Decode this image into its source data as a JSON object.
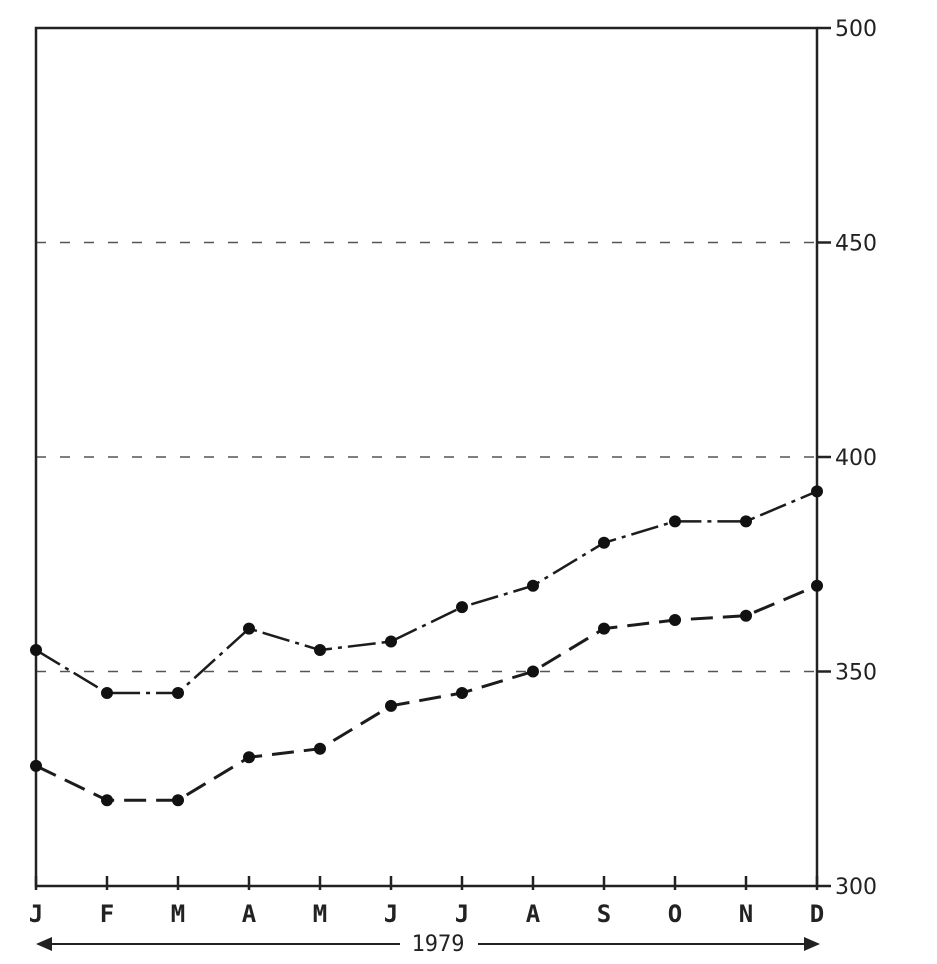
{
  "chart_data": {
    "type": "line",
    "title": "",
    "xlabel": "1979",
    "ylabel": "",
    "categories": [
      "J",
      "F",
      "M",
      "A",
      "M",
      "J",
      "J",
      "A",
      "S",
      "O",
      "N",
      "D"
    ],
    "ylim": [
      300,
      500
    ],
    "yticks": [
      300,
      350,
      400,
      450,
      500
    ],
    "ytick_labels": [
      "300",
      "350",
      "400",
      "450",
      "500"
    ],
    "grid": true,
    "series": [
      {
        "values": [
          355,
          345,
          345,
          360,
          355,
          357,
          365,
          370,
          380,
          385,
          385,
          392
        ]
      },
      {
        "values": [
          328,
          320,
          320,
          330,
          332,
          342,
          345,
          350,
          360,
          362,
          363,
          370
        ]
      }
    ]
  }
}
